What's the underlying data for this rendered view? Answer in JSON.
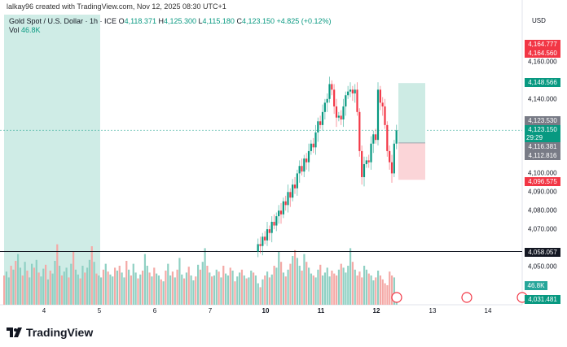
{
  "header": {
    "credit": "lalkay96 created with TradingView.com, Nov 12, 2025 08:30 UTC+1",
    "symbol": "Gold Spot / U.S. Dollar · 1h · ICE",
    "o_label": "O",
    "o": "4,118.371",
    "h_label": "H",
    "h": "4,125.300",
    "l_label": "L",
    "l": "4,115.180",
    "c_label": "C",
    "c": "4,123.150",
    "change": "+4.825 (+0.12%)",
    "vol_label": "Vol",
    "vol": "46.8K",
    "currency": "USD"
  },
  "brand": {
    "name": "TradingView"
  },
  "colors": {
    "up": "#089981",
    "down": "#f23645",
    "up_vol": "#8fd0c3",
    "down_vol": "#f4a9a6",
    "zone": "#cfece6",
    "stop": "#fbd5d8"
  },
  "chart_data": {
    "type": "candlestick",
    "price_ticks": [
      "4,160.000",
      "4,140.000",
      "4,100.000",
      "4,090.000",
      "4,080.000",
      "4,070.000",
      "4,050.000"
    ],
    "price_tick_values": [
      4160,
      4140,
      4100,
      4090,
      4080,
      4070,
      4050
    ],
    "ylim": [
      4026,
      4172
    ],
    "time_ticks": [
      "4",
      "5",
      "6",
      "7",
      "10",
      "11",
      "12",
      "13",
      "14"
    ],
    "price_tags": [
      {
        "label": "4,164.777",
        "value": 4164.777,
        "color": "#f23645"
      },
      {
        "label": "4,164.560",
        "value": 4164.56,
        "color": "#f23645"
      },
      {
        "label": "4,148.566",
        "value": 4148.566,
        "color": "#089981"
      },
      {
        "label": "4,123.530",
        "value": 4123.53,
        "color": "#787b86"
      },
      {
        "label": "4,123.150",
        "value": 4123.15,
        "color": "#089981",
        "sub": "29:29"
      },
      {
        "label": "4,116.381",
        "value": 4116.381,
        "color": "#787b86"
      },
      {
        "label": "4,112.816",
        "value": 4112.816,
        "color": "#787b86"
      },
      {
        "label": "4,096.575",
        "value": 4096.575,
        "color": "#f23645"
      },
      {
        "label": "4,058.057",
        "value": 4058.057,
        "color": "#131722"
      },
      {
        "label": "46.8K",
        "value": 4036,
        "color": "#26a69a"
      },
      {
        "label": "4,031.481",
        "value": 4031.481,
        "color": "#089981"
      }
    ],
    "horizontal_line": 4058.057,
    "last_price": 4123.15,
    "position": {
      "target": 4148.566,
      "entry": 4116.381,
      "stop": 4096.575
    },
    "closes": [
      4058,
      4062,
      4061,
      4066,
      4064,
      4070,
      4068,
      4074,
      4072,
      4077,
      4080,
      4078,
      4085,
      4083,
      4090,
      4087,
      4094,
      4092,
      4100,
      4104,
      4101,
      4108,
      4106,
      4112,
      4116,
      4114,
      4122,
      4128,
      4126,
      4133,
      4138,
      4140,
      4148,
      4145,
      4136,
      4130,
      4131,
      4129,
      4136,
      4142,
      4144,
      4145,
      4143,
      4145,
      4133,
      4112,
      4098,
      4105,
      4107,
      4106,
      4116,
      4121,
      4118,
      4145,
      4138,
      4136,
      4126,
      4112,
      4106,
      4100,
      4116,
      4123.15
    ],
    "volumes": [
      30,
      34,
      28,
      40,
      36,
      45,
      52,
      38,
      30,
      44,
      35,
      28,
      42,
      38,
      46,
      33,
      29,
      37,
      41,
      26,
      35,
      32,
      45,
      62,
      40,
      30,
      34,
      38,
      28,
      42,
      55,
      36,
      31,
      27,
      40,
      33,
      38,
      46,
      60,
      44,
      32,
      30,
      28,
      36,
      42,
      34,
      31,
      29,
      38,
      35,
      40,
      33,
      28,
      45,
      36,
      30,
      42,
      33,
      27,
      31,
      35,
      52,
      40,
      33,
      29,
      38,
      32,
      30,
      26,
      24,
      35,
      42,
      30,
      34,
      28,
      36,
      48,
      31,
      27,
      33,
      39,
      30,
      25,
      29,
      41,
      36,
      44,
      58,
      40,
      33,
      29,
      30,
      36,
      34,
      28,
      40,
      32,
      30,
      38,
      35,
      24,
      29,
      33,
      36,
      30,
      27,
      28,
      35,
      33,
      30,
      22,
      18,
      26,
      30,
      34,
      28,
      31,
      40,
      38,
      55,
      44,
      33,
      29,
      36,
      42,
      50,
      56,
      48,
      40,
      35,
      52,
      44,
      38,
      32,
      30,
      28,
      36,
      41,
      30,
      33,
      38,
      29,
      35,
      32,
      30,
      36,
      42,
      38,
      33,
      40,
      58,
      44,
      36,
      30,
      34,
      28,
      40,
      36,
      32,
      30,
      25,
      28,
      35,
      30,
      26,
      22,
      20,
      34,
      30,
      28,
      12
    ],
    "vol_max": 75
  }
}
